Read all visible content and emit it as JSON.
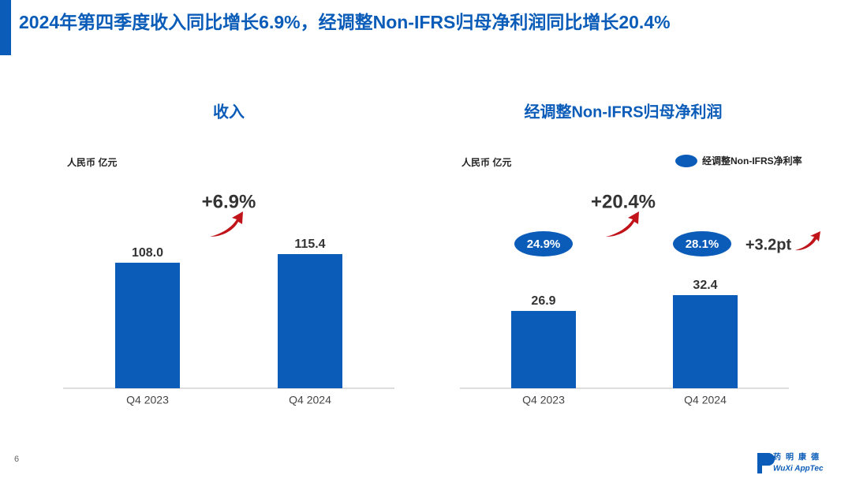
{
  "header": {
    "title": "2024年第四季度收入同比增长6.9%，经调整Non-IFRS归母净利润同比增长20.4%"
  },
  "chart_data": [
    {
      "type": "bar",
      "title": "收入",
      "unit": "人民币 亿元",
      "categories": [
        "Q4 2023",
        "Q4 2024"
      ],
      "values": [
        108.0,
        115.4
      ],
      "value_labels": [
        "108.0",
        "115.4"
      ],
      "color": "#0a5cb8",
      "annotations": [
        "+6.9%"
      ]
    },
    {
      "type": "bar",
      "title": "经调整Non-IFRS归母净利润",
      "unit": "人民币 亿元",
      "categories": [
        "Q4 2023",
        "Q4 2024"
      ],
      "values": [
        26.9,
        32.4
      ],
      "color": "#0a5cb8",
      "annotations": [
        "+20.4%",
        "+3.2pt"
      ],
      "margin": {
        "name": "经调整Non-IFRS净利率",
        "values": [
          24.9,
          28.1
        ],
        "value_labels": [
          "24.9%",
          "28.1%"
        ],
        "color": "#0a5cb8"
      }
    }
  ],
  "footer": {
    "page": "6",
    "logo_cn": "药明康德",
    "logo_en": "WuXi AppTec"
  }
}
